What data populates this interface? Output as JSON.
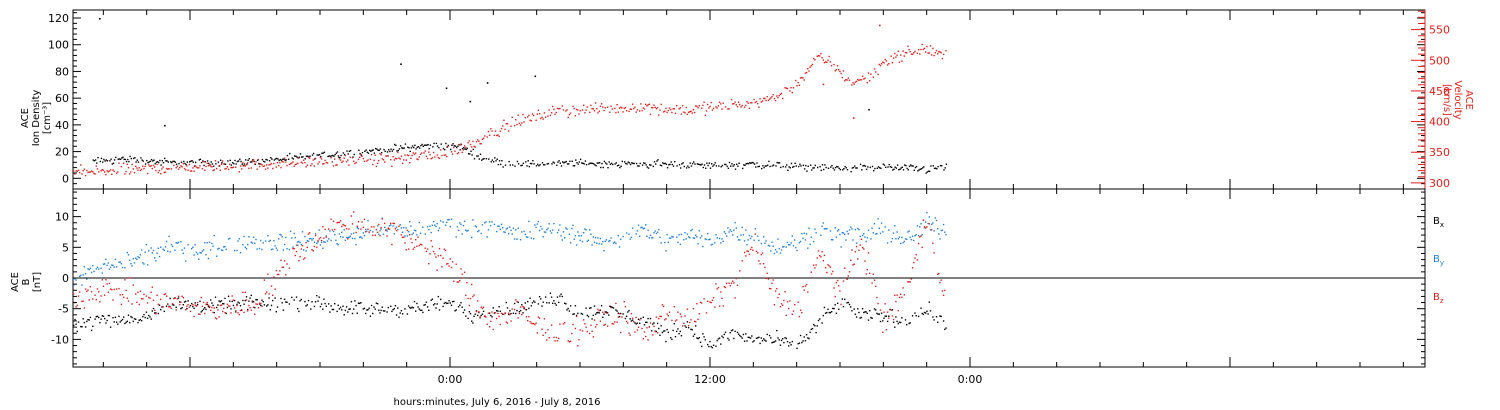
{
  "colors": {
    "axis": "#000000",
    "density": "#000000",
    "velocity": "#e0201c",
    "bx": "#000000",
    "by": "#1f7fd8",
    "bz": "#e0201c",
    "background": "#ffffff"
  },
  "x_axis": {
    "label": "hours:minutes, July  6, 2016 - July  8, 2016",
    "start_hour": -17.4,
    "end_hour": 45.0,
    "major_ticks": [
      {
        "hour": 0,
        "label": "0:00"
      },
      {
        "hour": 12,
        "label": "12:00"
      },
      {
        "hour": 24,
        "label": "0:00"
      }
    ],
    "minor_step_hours": 2
  },
  "chart_data": [
    {
      "type": "scatter",
      "name": "plasma-panel",
      "left_axis": {
        "title_lines": [
          "ACE",
          "Ion Density",
          "[cm⁻³]"
        ],
        "ylim": [
          -8,
          126
        ],
        "ticks": [
          0,
          20,
          40,
          60,
          80,
          100,
          120
        ],
        "tick_labels": [
          "0",
          "20",
          "40",
          "60",
          "80",
          "100",
          "120"
        ]
      },
      "right_axis": {
        "title_lines": [
          "ACE",
          "Velocity",
          "[km/s]"
        ],
        "ylim": [
          290,
          582
        ],
        "ticks": [
          300,
          350,
          400,
          450,
          500,
          550
        ],
        "tick_labels": [
          "300",
          "350",
          "400",
          "450",
          "500",
          "550"
        ]
      },
      "series": [
        {
          "key": "density",
          "axis": "left",
          "color": "#000000",
          "x_hours": [
            -16.5,
            -15.0,
            -13.0,
            -11.0,
            -9.0,
            -7.0,
            -5.0,
            -3.0,
            -1.0,
            0.5,
            1.5,
            2.5,
            4.0,
            6.0,
            8.0,
            10.0,
            12.0,
            14.0,
            16.0,
            18.0,
            20.0,
            22.0,
            22.9
          ],
          "values": [
            13,
            15,
            12,
            12,
            13,
            16,
            19,
            22,
            25,
            24,
            15,
            12,
            11,
            12,
            11,
            11,
            10,
            11,
            9,
            8,
            9,
            7,
            9
          ],
          "noise": 4,
          "spikes": [
            {
              "hour": -16.2,
              "value": 120
            },
            {
              "hour": -13.2,
              "value": 40
            },
            {
              "hour": -2.3,
              "value": 86
            },
            {
              "hour": -0.2,
              "value": 68
            },
            {
              "hour": 0.9,
              "value": 58
            },
            {
              "hour": 1.7,
              "value": 72
            },
            {
              "hour": 3.9,
              "value": 77
            },
            {
              "hour": 19.3,
              "value": 52
            }
          ]
        },
        {
          "key": "velocity",
          "axis": "right",
          "color": "#e0201c",
          "x_hours": [
            -17.4,
            -15.0,
            -13.0,
            -10.5,
            -8.0,
            -6.0,
            -4.0,
            -2.0,
            0.0,
            1.0,
            2.0,
            3.0,
            4.0,
            5.0,
            7.0,
            9.0,
            11.0,
            13.0,
            14.5,
            15.5,
            16.2,
            17.0,
            17.5,
            18.5,
            19.3,
            20.0,
            21.0,
            22.0,
            22.9
          ],
          "values": [
            318,
            322,
            326,
            328,
            332,
            335,
            338,
            342,
            350,
            365,
            385,
            400,
            410,
            418,
            422,
            425,
            420,
            428,
            436,
            448,
            472,
            505,
            498,
            465,
            472,
            500,
            512,
            520,
            505
          ],
          "noise": 14,
          "spikes": [
            {
              "hour": 17.2,
              "value": 462
            },
            {
              "hour": 18.6,
              "value": 407
            },
            {
              "hour": 19.8,
              "value": 558
            }
          ]
        }
      ]
    },
    {
      "type": "scatter",
      "name": "magnetic-field-panel",
      "left_axis": {
        "title_lines": [
          "ACE",
          "B",
          "[nT]"
        ],
        "ylim": [
          -14.5,
          14.5
        ],
        "ticks": [
          -10,
          -5,
          0,
          5,
          10
        ],
        "tick_labels": [
          "-10",
          "-5",
          "0",
          "5",
          "10"
        ],
        "zero_line": true
      },
      "legend": {
        "placement": "right",
        "entries": [
          {
            "label": "B",
            "subscript": "x",
            "color": "#000000"
          },
          {
            "label": "B",
            "subscript": "y",
            "color": "#1f7fd8"
          },
          {
            "label": "B",
            "subscript": "z",
            "color": "#e0201c"
          }
        ]
      },
      "series": [
        {
          "key": "bx",
          "color": "#000000",
          "x_hours": [
            -17.4,
            -14.5,
            -13.0,
            -11.0,
            -9.0,
            -6.5,
            -4.0,
            -2.0,
            0.0,
            1.0,
            2.0,
            3.0,
            4.0,
            5.0,
            6.0,
            7.0,
            8.0,
            9.0,
            10.0,
            11.0,
            12.0,
            13.0,
            14.0,
            15.0,
            16.0,
            17.0,
            18.0,
            19.0,
            20.0,
            21.0,
            22.0,
            22.9
          ],
          "values": [
            -7,
            -6.5,
            -4,
            -4.5,
            -4,
            -4,
            -5,
            -5,
            -4,
            -6,
            -5,
            -5,
            -4,
            -3,
            -6,
            -5,
            -6,
            -7,
            -9,
            -8,
            -11,
            -9,
            -10,
            -10,
            -11,
            -7,
            -4,
            -6,
            -6,
            -7,
            -5,
            -8
          ],
          "noise": 1.8
        },
        {
          "key": "by",
          "color": "#1f7fd8",
          "x_hours": [
            -17.4,
            -16.0,
            -14.5,
            -13.0,
            -11.0,
            -9.0,
            -7.0,
            -5.0,
            -3.0,
            -1.0,
            0.0,
            1.0,
            2.0,
            3.0,
            4.0,
            5.0,
            6.0,
            7.0,
            8.0,
            9.0,
            10.0,
            11.0,
            12.0,
            13.0,
            14.0,
            15.0,
            16.0,
            17.0,
            18.0,
            19.0,
            20.0,
            21.0,
            22.0,
            22.9
          ],
          "values": [
            0,
            2,
            3,
            5,
            5,
            6,
            6,
            7,
            8,
            8,
            9,
            8,
            9,
            7,
            8,
            8,
            7,
            6,
            7,
            8,
            6,
            7,
            6,
            8,
            7,
            5,
            6,
            8,
            7,
            7,
            8,
            6,
            9,
            8
          ],
          "noise": 2.4
        },
        {
          "key": "bz",
          "color": "#e0201c",
          "x_hours": [
            -17.4,
            -16.0,
            -14.5,
            -13.0,
            -11.0,
            -9.0,
            -7.0,
            -5.0,
            -3.0,
            -1.0,
            0.0,
            1.0,
            2.0,
            3.0,
            4.0,
            5.0,
            6.0,
            7.0,
            8.0,
            9.0,
            10.0,
            11.0,
            12.0,
            13.0,
            14.0,
            15.0,
            16.0,
            17.0,
            18.0,
            19.0,
            20.0,
            21.0,
            22.0,
            22.9
          ],
          "values": [
            -3,
            -1.5,
            -3,
            -4,
            -5,
            -4,
            5,
            9,
            8,
            5,
            2,
            -3,
            -7,
            -5,
            -8,
            -9,
            -8,
            -7,
            -6,
            -9,
            -5,
            -7,
            -4,
            -1,
            6,
            -3,
            -5,
            4,
            -2,
            6,
            -7,
            -2,
            10,
            -5
          ],
          "noise": 3.2
        }
      ]
    }
  ]
}
